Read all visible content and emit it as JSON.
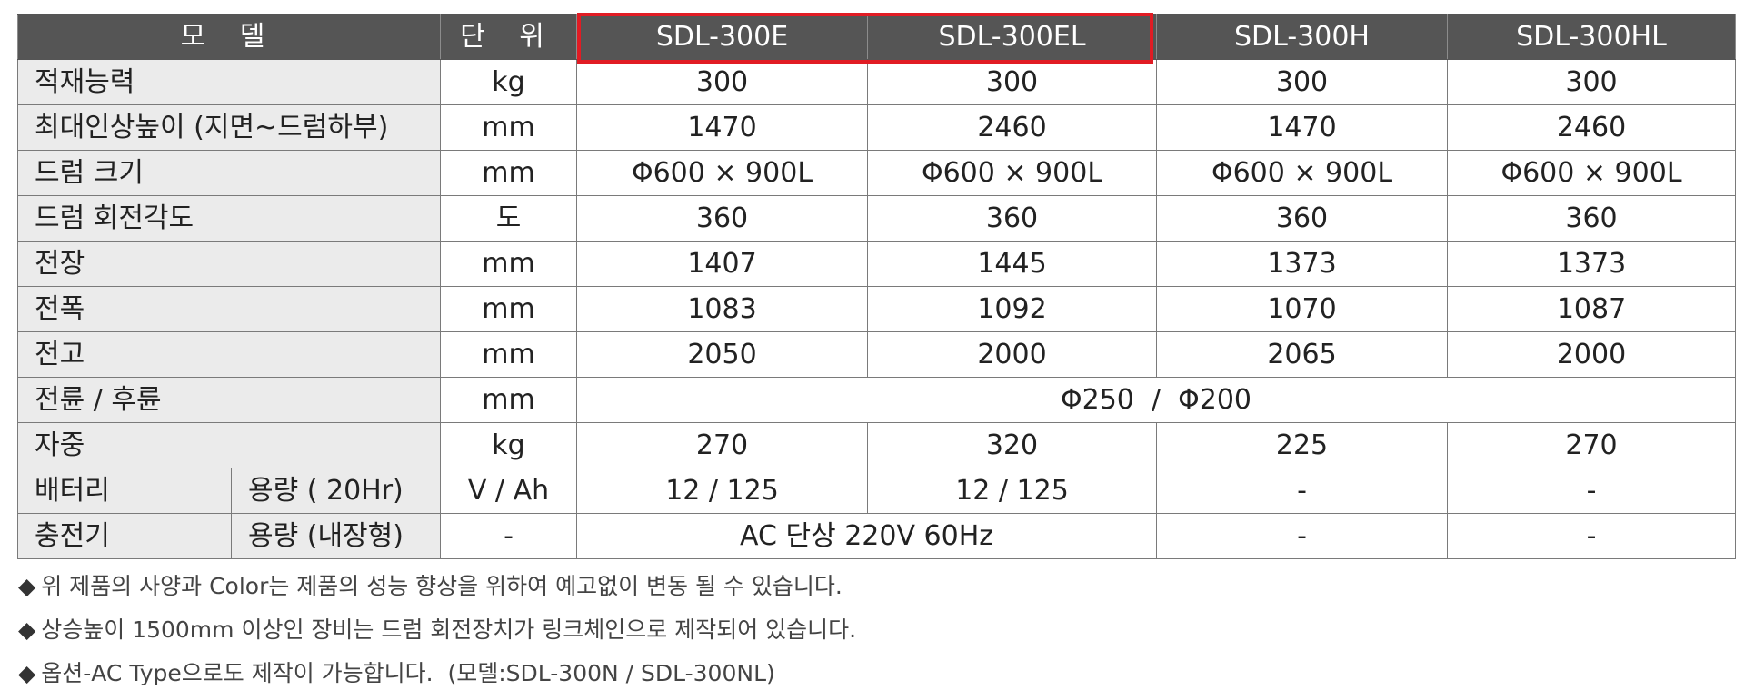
{
  "table": {
    "header": {
      "model": "모 델",
      "unit": "단 위",
      "models": [
        "SDL-300E",
        "SDL-300EL",
        "SDL-300H",
        "SDL-300HL"
      ]
    },
    "rows": [
      {
        "label": "적재능력",
        "unit": "kg",
        "values": [
          "300",
          "300",
          "300",
          "300"
        ]
      },
      {
        "label": "최대인상높이 (지면~드럼하부)",
        "unit": "mm",
        "values": [
          "1470",
          "2460",
          "1470",
          "2460"
        ]
      },
      {
        "label": "드럼 크기",
        "unit": "mm",
        "values": [
          "Φ600 × 900L",
          "Φ600 × 900L",
          "Φ600 × 900L",
          "Φ600 × 900L"
        ]
      },
      {
        "label": "드럼 회전각도",
        "unit": "도",
        "values": [
          "360",
          "360",
          "360",
          "360"
        ]
      },
      {
        "label": "전장",
        "unit": "mm",
        "values": [
          "1407",
          "1445",
          "1373",
          "1373"
        ]
      },
      {
        "label": "전폭",
        "unit": "mm",
        "values": [
          "1083",
          "1092",
          "1070",
          "1087"
        ]
      },
      {
        "label": "전고",
        "unit": "mm",
        "values": [
          "2050",
          "2000",
          "2065",
          "2000"
        ]
      }
    ],
    "wheels": {
      "label": "전륜 / 후륜",
      "unit": "mm",
      "value": "Φ250  /  Φ200"
    },
    "weight": {
      "label": "자중",
      "unit": "kg",
      "values": [
        "270",
        "320",
        "225",
        "270"
      ]
    },
    "battery": {
      "label": "배터리",
      "sublabel": "용량 ( 20Hr)",
      "unit": "V / Ah",
      "values": [
        "12 / 125",
        "12 / 125",
        "-",
        "-"
      ]
    },
    "charger": {
      "label": "충전기",
      "sublabel": "용량 (내장형)",
      "unit": "-",
      "value_el": "AC 단상 220V 60Hz",
      "values_h": [
        "-",
        "-"
      ]
    }
  },
  "highlight_color": "#e11c24",
  "notes": {
    "bullet": "◆",
    "items": [
      "위 제품의 사양과 Color는 제품의 성능 향상을 위하여 예고없이 변동 될 수 있습니다.",
      "상승높이 1500mm 이상인 장비는 드럼 회전장치가 링크체인으로 제작되어 있습니다.",
      "옵션-AC Type으로도 제작이 가능합니다.  (모델:SDL-300N / SDL-300NL)"
    ]
  }
}
